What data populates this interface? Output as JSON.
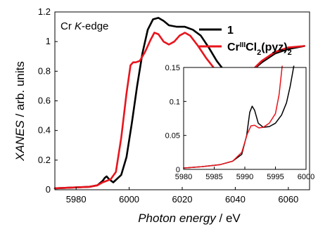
{
  "chart_data": [
    {
      "type": "line",
      "role": "main",
      "annotation": {
        "prefix": "Cr ",
        "italic": "K",
        "suffix": "-edge"
      },
      "xlabel": {
        "italic": "Photon energy",
        "unit": " / eV"
      },
      "ylabel": {
        "italic": "XANES",
        "unit": " / arb. units"
      },
      "xlim": [
        5972,
        6068
      ],
      "ylim": [
        0,
        1.2
      ],
      "xticks": [
        5980,
        6000,
        6020,
        6040,
        6060
      ],
      "yticks": [
        0,
        0.2,
        0.4,
        0.6,
        0.8,
        1,
        1.2
      ],
      "ytick_labels": [
        "0",
        "0.2",
        "0.4",
        "0.6",
        "0.8",
        "1",
        "1.2"
      ],
      "legend_position": "top-right",
      "series": [
        {
          "name": "1",
          "color": "#000000",
          "x": [
            5972,
            5985,
            5988,
            5990,
            5990.8,
            5991.5,
            5992.5,
            5994,
            5997,
            5999,
            6001,
            6003,
            6005,
            6007,
            6009,
            6011,
            6013,
            6015,
            6018,
            6021,
            6024,
            6027,
            6030,
            6033,
            6036,
            6038,
            6040,
            6043,
            6046,
            6050,
            6055,
            6060,
            6066
          ],
          "y": [
            0.01,
            0.02,
            0.03,
            0.06,
            0.08,
            0.09,
            0.07,
            0.05,
            0.1,
            0.22,
            0.45,
            0.7,
            0.92,
            1.08,
            1.15,
            1.16,
            1.14,
            1.11,
            1.1,
            1.1,
            1.08,
            1.04,
            0.96,
            0.87,
            0.8,
            0.76,
            0.75,
            0.76,
            0.8,
            0.86,
            0.92,
            0.95,
            0.97
          ]
        },
        {
          "name": "CrIIICl2(pyz)2",
          "name_parts": [
            {
              "text": "Cr"
            },
            {
              "text": "III",
              "shift": "super"
            },
            {
              "text": "Cl"
            },
            {
              "text": "2",
              "shift": "sub"
            },
            {
              "text": "(pyz)"
            },
            {
              "text": "2",
              "shift": "sub"
            }
          ],
          "color": "#e8141c",
          "x": [
            5972,
            5985,
            5988,
            5990,
            5991.5,
            5993,
            5995,
            5997,
            5999,
            6000.5,
            6001.5,
            6002.5,
            6004,
            6006,
            6008,
            6009.5,
            6011,
            6013,
            6015,
            6017,
            6019,
            6021,
            6023,
            6026,
            6029,
            6032,
            6035,
            6038,
            6040,
            6043,
            6046,
            6050,
            6055,
            6060,
            6066
          ],
          "y": [
            0.01,
            0.02,
            0.03,
            0.05,
            0.06,
            0.07,
            0.12,
            0.35,
            0.65,
            0.84,
            0.86,
            0.86,
            0.87,
            0.93,
            1.01,
            1.06,
            1.05,
            1.0,
            0.98,
            1.0,
            1.04,
            1.06,
            1.04,
            0.97,
            0.89,
            0.82,
            0.77,
            0.74,
            0.74,
            0.76,
            0.8,
            0.87,
            0.93,
            0.96,
            0.97
          ]
        }
      ]
    },
    {
      "type": "line",
      "role": "inset",
      "xlim": [
        5980,
        6000
      ],
      "ylim": [
        0,
        0.15
      ],
      "xticks": [
        5980,
        5985,
        5990,
        5995,
        6000
      ],
      "yticks": [
        0,
        0.05,
        0.1,
        0.15
      ],
      "ytick_labels": [
        "0",
        "0.05",
        "0.1",
        "0.15"
      ],
      "series": [
        {
          "name": "1",
          "color": "#000000",
          "x": [
            5980,
            5983,
            5986,
            5988,
            5989.5,
            5990.3,
            5990.8,
            5991.2,
            5991.6,
            5992.2,
            5993,
            5994,
            5995,
            5996,
            5996.8,
            5997.4,
            5998
          ],
          "y": [
            0.002,
            0.004,
            0.007,
            0.012,
            0.022,
            0.05,
            0.084,
            0.093,
            0.087,
            0.068,
            0.062,
            0.063,
            0.068,
            0.08,
            0.098,
            0.122,
            0.152
          ]
        },
        {
          "name": "CrIIICl2(pyz)2",
          "color": "#e8141c",
          "x": [
            5980,
            5983,
            5986,
            5988,
            5989.5,
            5990.4,
            5991,
            5991.6,
            5992.3,
            5993,
            5994,
            5995,
            5995.6,
            5996.1
          ],
          "y": [
            0.002,
            0.004,
            0.007,
            0.012,
            0.025,
            0.052,
            0.064,
            0.065,
            0.061,
            0.062,
            0.068,
            0.082,
            0.11,
            0.152
          ]
        }
      ]
    }
  ]
}
